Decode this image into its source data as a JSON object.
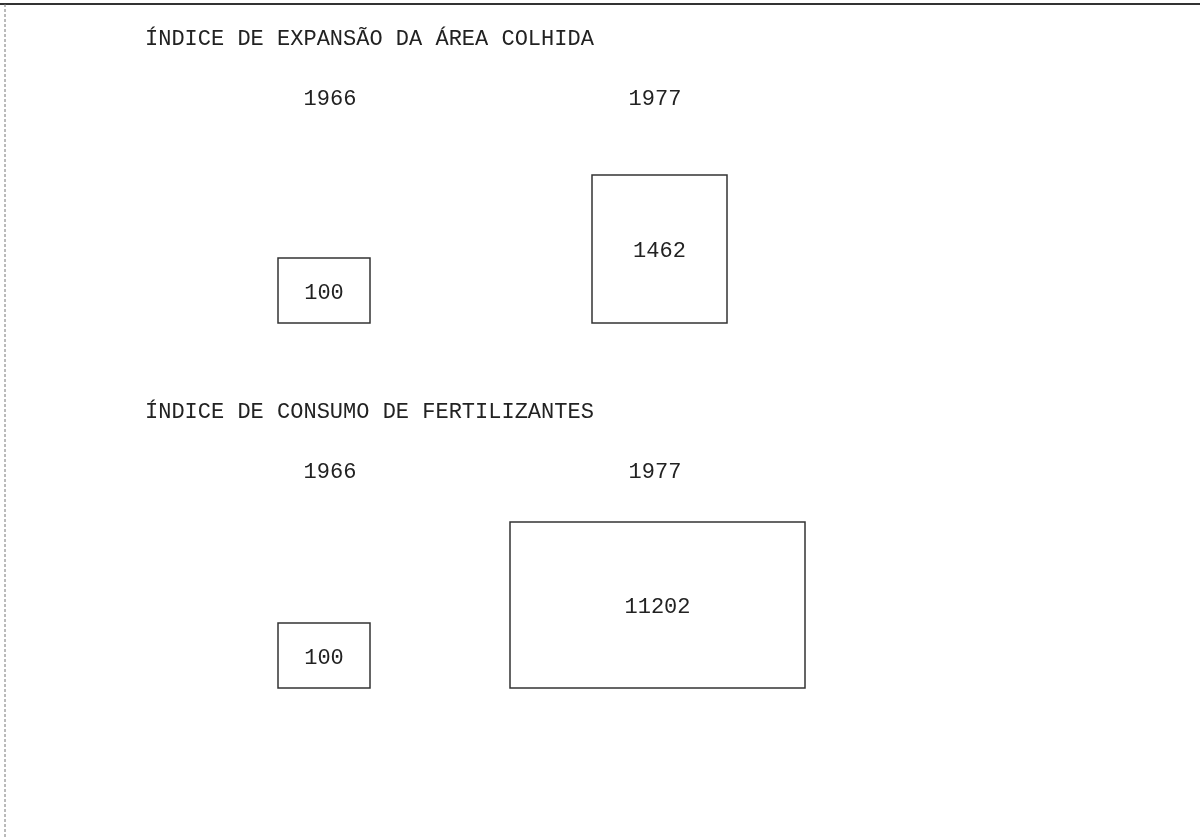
{
  "chart_data": [
    {
      "type": "other",
      "title": "ÍNDICE DE EXPANSÃO DA ÁREA COLHIDA",
      "categories": [
        "1966",
        "1977"
      ],
      "values": [
        100,
        1462
      ],
      "data_labels": true
    },
    {
      "type": "other",
      "title": "ÍNDICE DE CONSUMO DE FERTILIZANTES",
      "categories": [
        "1966",
        "1977"
      ],
      "values": [
        100,
        11202
      ],
      "data_labels": true
    }
  ]
}
